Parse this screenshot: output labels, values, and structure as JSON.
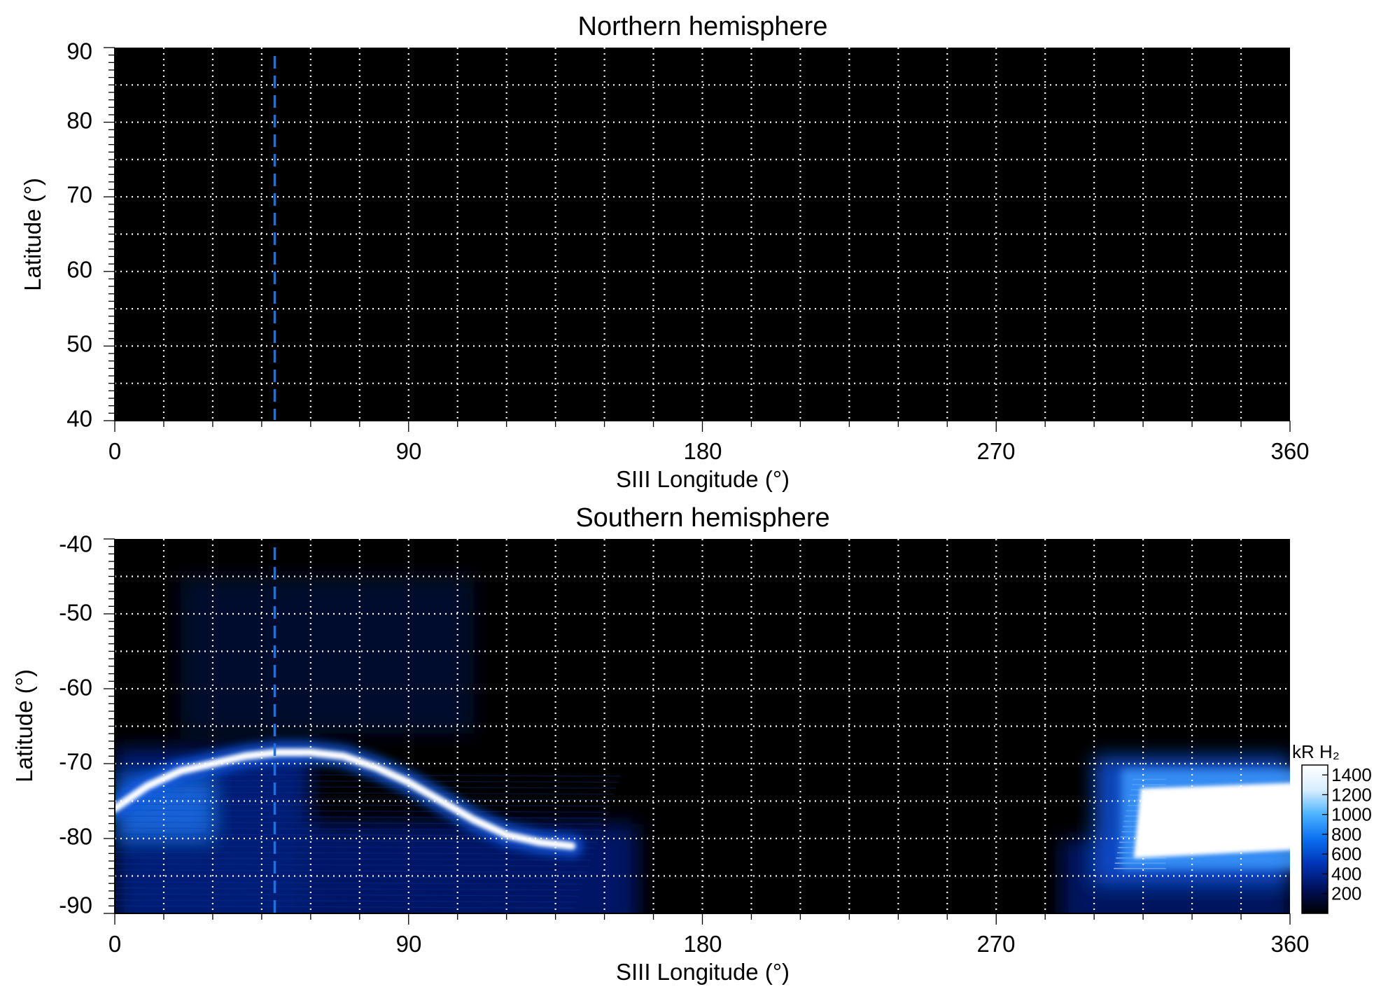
{
  "chart_data": [
    {
      "type": "heatmap",
      "title": "Northern hemisphere",
      "xlabel": "SIII Longitude (°)",
      "ylabel": "Latitude (°)",
      "xlim": [
        0,
        360
      ],
      "ylim": [
        40,
        90
      ],
      "x_ticks": [
        "0",
        "90",
        "180",
        "270",
        "360"
      ],
      "y_ticks": [
        "40",
        "50",
        "60",
        "70",
        "80",
        "90"
      ],
      "grid": "white dotted, every 15° longitude and 5° latitude",
      "marker_line": {
        "longitude": 49,
        "style": "blue dashed vertical"
      },
      "background": "#000000",
      "emission_features": []
    },
    {
      "type": "heatmap",
      "title": "Southern hemisphere",
      "xlabel": "SIII Longitude (°)",
      "ylabel": "Latitude (°)",
      "xlim": [
        0,
        360
      ],
      "ylim": [
        -90,
        -40
      ],
      "x_ticks": [
        "0",
        "90",
        "180",
        "270",
        "360"
      ],
      "y_ticks": [
        "-40",
        "-50",
        "-60",
        "-70",
        "-80",
        "-90"
      ],
      "grid": "white dotted, every 15° longitude and 5° latitude",
      "marker_line": {
        "longitude": 49,
        "style": "blue dashed vertical"
      },
      "background": "#000000",
      "auroral_oval": {
        "description": "bright main emission arc",
        "longitude": [
          0,
          10,
          20,
          30,
          40,
          50,
          60,
          70,
          80,
          90,
          100,
          110,
          120,
          130,
          140
        ],
        "latitude": [
          -76,
          -73,
          -71,
          -70,
          -69,
          -68.5,
          -68.5,
          -69,
          -70.5,
          -72.5,
          -75,
          -77.5,
          -79.5,
          -80.5,
          -81
        ]
      },
      "bright_region": {
        "longitude_range": [
          310,
          360
        ],
        "latitude_range": [
          -83,
          -72
        ],
        "intensity_kR": 1400
      },
      "colorbar": {
        "label": "kR H₂",
        "ticks": [
          "200",
          "400",
          "600",
          "800",
          "1000",
          "1200",
          "1400"
        ],
        "range": [
          0,
          1500
        ],
        "colors": [
          "#000000",
          "#00105a",
          "#0033b5",
          "#0a6ff0",
          "#4cb2ff",
          "#d8efff",
          "#ffffff"
        ]
      }
    }
  ]
}
